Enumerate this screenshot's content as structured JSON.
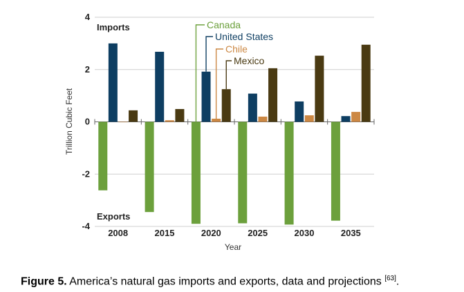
{
  "chart_data": {
    "type": "bar",
    "categories": [
      "2008",
      "2015",
      "2020",
      "2025",
      "2030",
      "2035"
    ],
    "series": [
      {
        "name": "Canada",
        "color": "#6ca03c",
        "values": [
          -2.62,
          -3.45,
          -3.9,
          -3.88,
          -3.93,
          -3.78
        ]
      },
      {
        "name": "United States",
        "color": "#0e3e62",
        "values": [
          3.0,
          2.68,
          1.92,
          1.08,
          0.78,
          0.22
        ]
      },
      {
        "name": "Chile",
        "color": "#cc8844",
        "values": [
          0.0,
          0.06,
          0.12,
          0.2,
          0.25,
          0.38
        ]
      },
      {
        "name": "Mexico",
        "color": "#4a3a12",
        "values": [
          0.44,
          0.49,
          1.25,
          2.05,
          2.53,
          2.95
        ]
      }
    ],
    "yticks": [
      "4",
      "2",
      "0",
      "-2",
      "-4"
    ],
    "ylim": [
      -4,
      4
    ],
    "ylabel": "Trillion Cubic Feet",
    "xlabel": "Year",
    "annotations": {
      "imports": "Imports",
      "exports": "Exports"
    }
  },
  "caption": {
    "label": "Figure 5.",
    "text": " America’s natural gas imports and exports, data and projections ",
    "ref": "[63]",
    "end": "."
  }
}
